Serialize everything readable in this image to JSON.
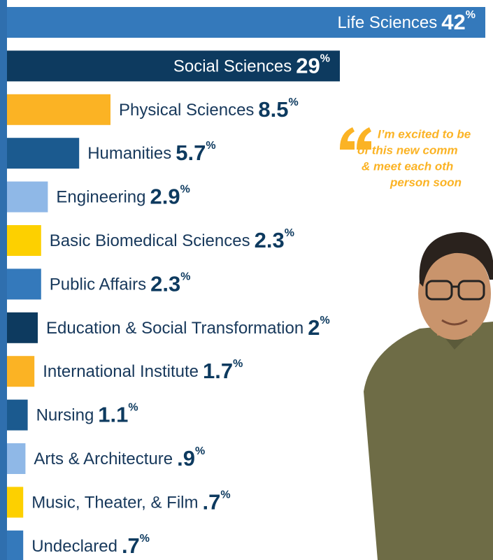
{
  "chart_data": {
    "type": "bar",
    "orientation": "horizontal",
    "categories": [
      "Life Sciences",
      "Social Sciences",
      "Physical Sciences",
      "Humanities",
      "Engineering",
      "Basic Biomedical Sciences",
      "Public Affairs",
      "Education & Social Transformation",
      "International Institute",
      "Nursing",
      "Arts & Architecture",
      "Music, Theater, & Film",
      "Undeclared"
    ],
    "values": [
      42,
      29,
      8.5,
      5.7,
      2.9,
      2.3,
      2.3,
      2,
      1.7,
      1.1,
      0.9,
      0.7,
      0.7
    ],
    "value_labels": [
      "42",
      "29",
      "8.5",
      "5.7",
      "2.9",
      "2.3",
      "2.3",
      "2",
      "1.7",
      "1.1",
      ".9",
      ".7",
      ".7"
    ],
    "unit": "%",
    "colors": [
      "#3479bb",
      "#0d3a5f",
      "#fbb324",
      "#1b5a8f",
      "#8fb8e7",
      "#fdd000",
      "#3479bb",
      "#0d3a5f",
      "#fbb324",
      "#1b5a8f",
      "#8fb8e7",
      "#fdd000",
      "#3479bb"
    ],
    "quote": [
      "I’m excited to be",
      "of this new comm",
      "& meet each oth",
      "person soon"
    ]
  }
}
